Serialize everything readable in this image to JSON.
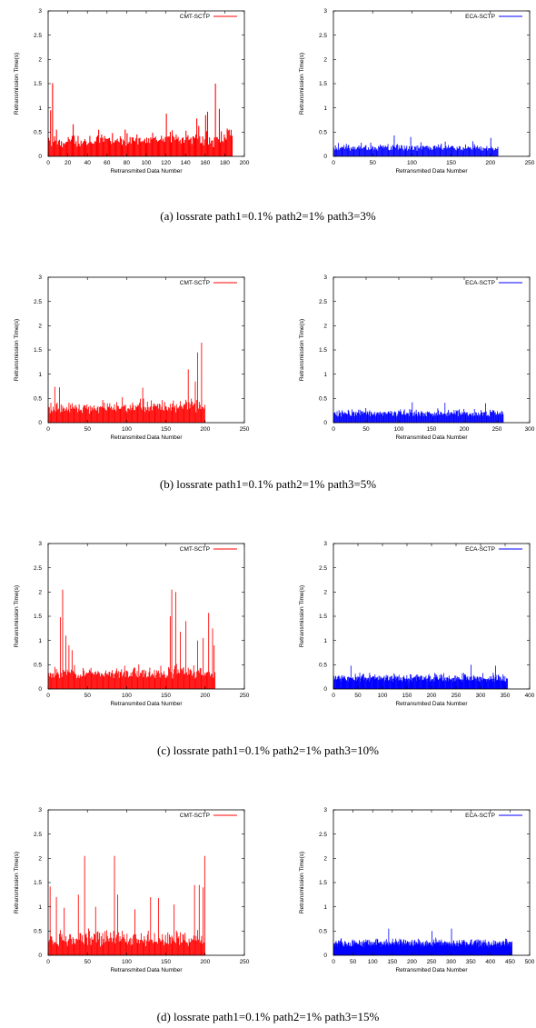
{
  "colors": {
    "cmt": "#ff0000",
    "eca": "#0000ff",
    "axis": "#000000"
  },
  "rows": [
    {
      "caption": "(a)  lossrate path1=0.1% path2=1% path3=3%",
      "charts": [
        {
          "type": "bar",
          "series_name": "CMT-SCTP",
          "color": "#ff0000",
          "xlabel": "Retransmited Data Number",
          "ylabel": "Retransmission Time(s)",
          "xlim": [
            0,
            200
          ],
          "ylim": [
            0,
            3
          ],
          "xticks": [
            0,
            20,
            40,
            60,
            80,
            100,
            120,
            140,
            160,
            180,
            200
          ],
          "yticks": [
            0,
            0.5,
            1,
            1.5,
            2,
            2.5,
            3
          ],
          "n": 188,
          "base": 0.32,
          "amp": 0.22,
          "rise": 0.18,
          "spikes": [
            [
              4,
              1.51
            ],
            [
              2,
              0.95
            ],
            [
              8,
              0.55
            ],
            [
              25,
              0.66
            ],
            [
              120,
              0.88
            ],
            [
              151,
              0.78
            ],
            [
              160,
              0.85
            ],
            [
              162,
              0.92
            ],
            [
              170,
              1.5
            ],
            [
              174,
              0.98
            ],
            [
              184,
              0.55
            ]
          ]
        },
        {
          "type": "bar",
          "series_name": "ECA-SCTP",
          "color": "#0000ff",
          "xlabel": "Retransmited Data Number",
          "ylabel": "Retransmission Time(s)",
          "xlim": [
            0,
            250
          ],
          "ylim": [
            0,
            3
          ],
          "xticks": [
            0,
            50,
            100,
            150,
            200,
            250
          ],
          "yticks": [
            0,
            0.5,
            1,
            1.5,
            2,
            2.5,
            3
          ],
          "n": 210,
          "base": 0.2,
          "amp": 0.12,
          "rise": 0,
          "spikes": [
            [
              77,
              0.43
            ],
            [
              98,
              0.4
            ],
            [
              200,
              0.38
            ]
          ]
        }
      ]
    },
    {
      "caption": "(b)  lossrate path1=0.1% path2=1% path3=5%",
      "charts": [
        {
          "type": "bar",
          "series_name": "CMT-SCTP",
          "color": "#ff0000",
          "xlabel": "Retransmited Data Number",
          "ylabel": "Retransmission Time(s)",
          "xlim": [
            0,
            250
          ],
          "ylim": [
            0,
            3
          ],
          "xticks": [
            0,
            50,
            100,
            150,
            200,
            250
          ],
          "yticks": [
            0,
            0.5,
            1,
            1.5,
            2,
            2.5,
            3
          ],
          "n": 200,
          "base": 0.32,
          "amp": 0.2,
          "rise": 0.12,
          "spikes": [
            [
              8,
              0.74
            ],
            [
              14,
              0.73
            ],
            [
              120,
              0.72
            ],
            [
              178,
              1.1
            ],
            [
              190,
              1.45
            ],
            [
              195,
              1.65
            ],
            [
              187,
              0.85
            ]
          ]
        },
        {
          "type": "bar",
          "series_name": "ECA-SCTP",
          "color": "#0000ff",
          "xlabel": "Retransmited Data Number",
          "ylabel": "Retransmission Time(s)",
          "xlim": [
            0,
            300
          ],
          "ylim": [
            0,
            3
          ],
          "xticks": [
            0,
            50,
            100,
            150,
            200,
            250,
            300
          ],
          "yticks": [
            0,
            0.5,
            1,
            1.5,
            2,
            2.5,
            3
          ],
          "n": 260,
          "base": 0.22,
          "amp": 0.12,
          "rise": 0,
          "spikes": [
            [
              120,
              0.42
            ],
            [
              170,
              0.41
            ],
            [
              232,
              0.4
            ]
          ]
        }
      ]
    },
    {
      "caption": "(c)  lossrate path1=0.1% path2=1% path3=10%",
      "charts": [
        {
          "type": "bar",
          "series_name": "CMT-SCTP",
          "color": "#ff0000",
          "xlabel": "Retransmited Data Number",
          "ylabel": "Retransmission Time(s)",
          "xlim": [
            0,
            250
          ],
          "ylim": [
            0,
            3
          ],
          "xticks": [
            0,
            50,
            100,
            150,
            200,
            250
          ],
          "yticks": [
            0,
            0.5,
            1,
            1.5,
            2,
            2.5,
            3
          ],
          "n": 213,
          "base": 0.35,
          "amp": 0.22,
          "rise": 0.05,
          "spikes": [
            [
              15,
              1.48
            ],
            [
              18,
              2.05
            ],
            [
              22,
              1.1
            ],
            [
              26,
              0.9
            ],
            [
              30,
              0.8
            ],
            [
              155,
              1.5
            ],
            [
              157,
              2.05
            ],
            [
              162,
              2.0
            ],
            [
              168,
              1.18
            ],
            [
              175,
              1.4
            ],
            [
              190,
              1.0
            ],
            [
              197,
              1.05
            ],
            [
              204,
              1.57
            ],
            [
              209,
              1.25
            ],
            [
              211,
              0.9
            ]
          ]
        },
        {
          "type": "bar",
          "series_name": "ECA-SCTP",
          "color": "#0000ff",
          "xlabel": "Retransmited Data Number",
          "ylabel": "Retransmission Time(s)",
          "xlim": [
            0,
            400
          ],
          "ylim": [
            0,
            3
          ],
          "xticks": [
            0,
            50,
            100,
            150,
            200,
            250,
            300,
            350,
            400
          ],
          "yticks": [
            0,
            0.5,
            1,
            1.5,
            2,
            2.5,
            3
          ],
          "n": 355,
          "base": 0.25,
          "amp": 0.12,
          "rise": 0,
          "spikes": [
            [
              35,
              0.48
            ],
            [
              280,
              0.5
            ],
            [
              330,
              0.48
            ]
          ]
        }
      ]
    },
    {
      "caption": "(d)  lossrate path1=0.1% path2=1% path3=15%",
      "charts": [
        {
          "type": "bar",
          "series_name": "CMT-SCTP",
          "color": "#ff0000",
          "xlabel": "Retransmited Data Number",
          "ylabel": "Retransmission Time(s)",
          "xlim": [
            0,
            250
          ],
          "ylim": [
            0,
            3
          ],
          "xticks": [
            0,
            50,
            100,
            150,
            200,
            250
          ],
          "yticks": [
            0,
            0.5,
            1,
            1.5,
            2,
            2.5,
            3
          ],
          "n": 200,
          "base": 0.32,
          "amp": 0.32,
          "rise": 0,
          "spikes": [
            [
              2,
              1.42
            ],
            [
              10,
              1.2
            ],
            [
              20,
              0.98
            ],
            [
              38,
              1.25
            ],
            [
              46,
              2.05
            ],
            [
              60,
              1.0
            ],
            [
              84,
              2.05
            ],
            [
              88,
              1.25
            ],
            [
              110,
              0.95
            ],
            [
              130,
              1.2
            ],
            [
              140,
              1.18
            ],
            [
              160,
              1.05
            ],
            [
              186,
              1.45
            ],
            [
              192,
              1.45
            ],
            [
              197,
              1.4
            ],
            [
              199,
              2.05
            ]
          ]
        },
        {
          "type": "bar",
          "series_name": "ECA-SCTP",
          "color": "#0000ff",
          "xlabel": "Retransmited Data Number",
          "ylabel": "Retransmission Time(s)",
          "xlim": [
            0,
            500
          ],
          "ylim": [
            0,
            3
          ],
          "xticks": [
            0,
            50,
            100,
            150,
            200,
            250,
            300,
            350,
            400,
            450,
            500
          ],
          "yticks": [
            0,
            0.5,
            1,
            1.5,
            2,
            2.5,
            3
          ],
          "n": 455,
          "base": 0.28,
          "amp": 0.12,
          "rise": 0,
          "spikes": [
            [
              140,
              0.55
            ],
            [
              300,
              0.55
            ],
            [
              250,
              0.5
            ]
          ]
        }
      ]
    }
  ],
  "chart_data": [
    {
      "type": "bar",
      "title": "",
      "series": [
        {
          "name": "CMT-SCTP"
        }
      ],
      "xlabel": "Retransmited Data Number",
      "ylabel": "Retransmission Time(s)",
      "xlim": [
        0,
        200
      ],
      "ylim": [
        0,
        3
      ],
      "legend": "top-right"
    },
    {
      "type": "bar",
      "title": "",
      "series": [
        {
          "name": "ECA-SCTP"
        }
      ],
      "xlabel": "Retransmited Data Number",
      "ylabel": "Retransmission Time(s)",
      "xlim": [
        0,
        250
      ],
      "ylim": [
        0,
        3
      ],
      "legend": "top-right"
    },
    {
      "type": "bar",
      "title": "",
      "series": [
        {
          "name": "CMT-SCTP"
        }
      ],
      "xlabel": "Retransmited Data Number",
      "ylabel": "Retransmission Time(s)",
      "xlim": [
        0,
        250
      ],
      "ylim": [
        0,
        3
      ],
      "legend": "top-right"
    },
    {
      "type": "bar",
      "title": "",
      "series": [
        {
          "name": "ECA-SCTP"
        }
      ],
      "xlabel": "Retransmited Data Number",
      "ylabel": "Retransmission Time(s)",
      "xlim": [
        0,
        300
      ],
      "ylim": [
        0,
        3
      ],
      "legend": "top-right"
    },
    {
      "type": "bar",
      "title": "",
      "series": [
        {
          "name": "CMT-SCTP"
        }
      ],
      "xlabel": "Retransmited Data Number",
      "ylabel": "Retransmission Time(s)",
      "xlim": [
        0,
        250
      ],
      "ylim": [
        0,
        3
      ],
      "legend": "top-right"
    },
    {
      "type": "bar",
      "title": "",
      "series": [
        {
          "name": "ECA-SCTP"
        }
      ],
      "xlabel": "Retransmited Data Number",
      "ylabel": "Retransmission Time(s)",
      "xlim": [
        0,
        400
      ],
      "ylim": [
        0,
        3
      ],
      "legend": "top-right"
    },
    {
      "type": "bar",
      "title": "",
      "series": [
        {
          "name": "CMT-SCTP"
        }
      ],
      "xlabel": "Retransmited Data Number",
      "ylabel": "Retransmission Time(s)",
      "xlim": [
        0,
        250
      ],
      "ylim": [
        0,
        3
      ],
      "legend": "top-right"
    },
    {
      "type": "bar",
      "title": "",
      "series": [
        {
          "name": "ECA-SCTP"
        }
      ],
      "xlabel": "Retransmited Data Number",
      "ylabel": "Retransmission Time(s)",
      "xlim": [
        0,
        500
      ],
      "ylim": [
        0,
        3
      ],
      "legend": "top-right"
    }
  ]
}
